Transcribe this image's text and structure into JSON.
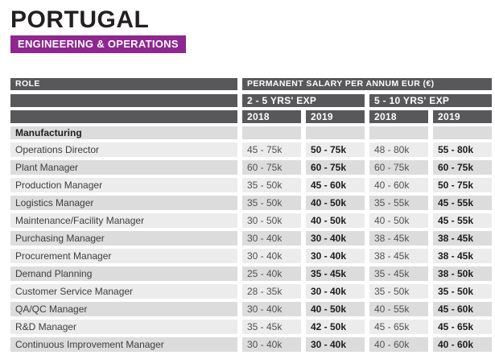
{
  "header": {
    "country": "PORTUGAL",
    "category": "ENGINEERING & OPERATIONS"
  },
  "table": {
    "role_header": "ROLE",
    "salary_header": "PERMANENT SALARY PER ANNUM EUR (€)",
    "exp_groups": [
      "2 - 5 YRS' EXP",
      "5 - 10 YRS' EXP"
    ],
    "year_columns": [
      "2018",
      "2019",
      "2018",
      "2019"
    ],
    "section": "Manufacturing",
    "rows": [
      {
        "role": "Operations Director",
        "values": [
          "45 - 75k",
          "50 - 75k",
          "48 - 80k",
          "55 - 80k"
        ]
      },
      {
        "role": "Plant Manager",
        "values": [
          "60 - 75k",
          "60 - 75k",
          "60 - 75k",
          "60 - 75k"
        ]
      },
      {
        "role": "Production Manager",
        "values": [
          "35 - 50k",
          "45 - 60k",
          "40 - 60k",
          "50 - 75k"
        ]
      },
      {
        "role": "Logistics Manager",
        "values": [
          "35 - 50k",
          "40 - 50k",
          "35 - 55k",
          "45 - 55k"
        ]
      },
      {
        "role": "Maintenance/Facility Manager",
        "values": [
          "30 - 50k",
          "40 - 50k",
          "40 - 50k",
          "45 - 55k"
        ]
      },
      {
        "role": "Purchasing Manager",
        "values": [
          "30 - 40k",
          "30 - 40k",
          "38 - 45k",
          "38 - 45k"
        ]
      },
      {
        "role": "Procurement Manager",
        "values": [
          "30 - 40k",
          "30 - 40k",
          "38 - 45k",
          "38 - 45k"
        ]
      },
      {
        "role": "Demand Planning",
        "values": [
          "25 - 40k",
          "35 - 45k",
          "35 - 45k",
          "38 - 50k"
        ]
      },
      {
        "role": "Customer Service Manager",
        "values": [
          "28 - 35k",
          "30 - 40k",
          "35 - 50k",
          "35 - 50k"
        ]
      },
      {
        "role": "QA/QC Manager",
        "values": [
          "30 - 40k",
          "40 - 50k",
          "40 - 55k",
          "45 - 60k"
        ]
      },
      {
        "role": "R&D Manager",
        "values": [
          "35 - 45k",
          "42 - 50k",
          "45 - 65k",
          "45 - 65k"
        ]
      },
      {
        "role": "Continuous Improvement Manager",
        "values": [
          "30 - 40k",
          "30 - 40k",
          "40 - 60k",
          "40 - 60k"
        ]
      }
    ]
  },
  "colors": {
    "accent_purple": "#8e278f",
    "header_bar_gray": "#58585a",
    "row_light_gray": "#ececec",
    "row_dark_gray": "#dcdcdc"
  }
}
